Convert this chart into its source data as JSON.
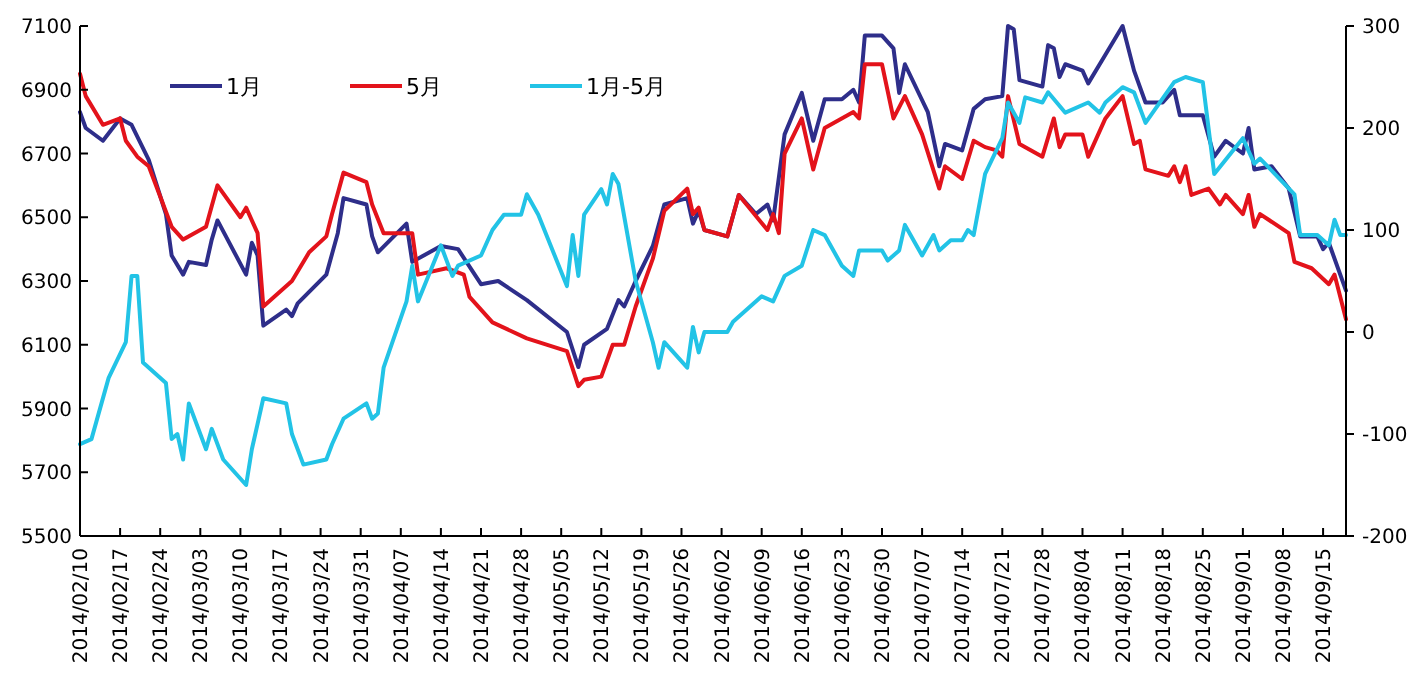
{
  "chart_data": {
    "type": "line",
    "legend": "top left",
    "grid": false,
    "marker": "none",
    "line_style": "solid",
    "xlim": [
      "2014-02-10",
      "2014-09-19"
    ],
    "xticks": [
      {
        "value": "2014-02-10",
        "label": "2014/02/10"
      },
      {
        "value": "2014-02-17",
        "label": "2014/02/17"
      },
      {
        "value": "2014-02-24",
        "label": "2014/02/24"
      },
      {
        "value": "2014-03-03",
        "label": "2014/03/03"
      },
      {
        "value": "2014-03-10",
        "label": "2014/03/10"
      },
      {
        "value": "2014-03-17",
        "label": "2014/03/17"
      },
      {
        "value": "2014-03-24",
        "label": "2014/03/24"
      },
      {
        "value": "2014-03-31",
        "label": "2014/03/31"
      },
      {
        "value": "2014-04-07",
        "label": "2014/04/07"
      },
      {
        "value": "2014-04-14",
        "label": "2014/04/14"
      },
      {
        "value": "2014-04-21",
        "label": "2014/04/21"
      },
      {
        "value": "2014-04-28",
        "label": "2014/04/28"
      },
      {
        "value": "2014-05-05",
        "label": "2014/05/05"
      },
      {
        "value": "2014-05-12",
        "label": "2014/05/12"
      },
      {
        "value": "2014-05-19",
        "label": "2014/05/19"
      },
      {
        "value": "2014-05-26",
        "label": "2014/05/26"
      },
      {
        "value": "2014-06-02",
        "label": "2014/06/02"
      },
      {
        "value": "2014-06-09",
        "label": "2014/06/09"
      },
      {
        "value": "2014-06-16",
        "label": "2014/06/16"
      },
      {
        "value": "2014-06-23",
        "label": "2014/06/23"
      },
      {
        "value": "2014-06-30",
        "label": "2014/06/30"
      },
      {
        "value": "2014-07-07",
        "label": "2014/07/07"
      },
      {
        "value": "2014-07-14",
        "label": "2014/07/14"
      },
      {
        "value": "2014-07-21",
        "label": "2014/07/21"
      },
      {
        "value": "2014-07-28",
        "label": "2014/07/28"
      },
      {
        "value": "2014-08-04",
        "label": "2014/08/04"
      },
      {
        "value": "2014-08-11",
        "label": "2014/08/11"
      },
      {
        "value": "2014-08-18",
        "label": "2014/08/18"
      },
      {
        "value": "2014-08-25",
        "label": "2014/08/25"
      },
      {
        "value": "2014-09-01",
        "label": "2014/09/01"
      },
      {
        "value": "2014-09-08",
        "label": "2014/09/08"
      },
      {
        "value": "2014-09-15",
        "label": "2014/09/15"
      }
    ],
    "ylim": [
      5500,
      7100
    ],
    "yticks": [
      5500,
      5700,
      5900,
      6100,
      6300,
      6500,
      6700,
      6900,
      7100
    ],
    "y2lim": [
      -200,
      300
    ],
    "y2ticks": [
      -200,
      -100,
      0,
      100,
      200,
      300
    ],
    "series": [
      {
        "name": "1月",
        "color": "#2e2e8a",
        "x": [
          "2014-02-10",
          "2014-02-11",
          "2014-02-14",
          "2014-02-17",
          "2014-02-19",
          "2014-02-22",
          "2014-02-25",
          "2014-02-26",
          "2014-02-28",
          "2014-03-01",
          "2014-03-04",
          "2014-03-05",
          "2014-03-06",
          "2014-03-11",
          "2014-03-12",
          "2014-03-13",
          "2014-03-14",
          "2014-03-18",
          "2014-03-19",
          "2014-03-20",
          "2014-03-25",
          "2014-03-27",
          "2014-03-28",
          "2014-04-01",
          "2014-04-02",
          "2014-04-03",
          "2014-04-08",
          "2014-04-09",
          "2014-04-11",
          "2014-04-14",
          "2014-04-17",
          "2014-04-21",
          "2014-04-24",
          "2014-04-29",
          "2014-05-06",
          "2014-05-08",
          "2014-05-09",
          "2014-05-13",
          "2014-05-15",
          "2014-05-16",
          "2014-05-18",
          "2014-05-21",
          "2014-05-23",
          "2014-05-27",
          "2014-05-28",
          "2014-05-29",
          "2014-05-30",
          "2014-06-03",
          "2014-06-05",
          "2014-06-08",
          "2014-06-10",
          "2014-06-11",
          "2014-06-13",
          "2014-06-16",
          "2014-06-18",
          "2014-06-20",
          "2014-06-23",
          "2014-06-25",
          "2014-06-26",
          "2014-06-27",
          "2014-06-30",
          "2014-07-02",
          "2014-07-03",
          "2014-07-04",
          "2014-07-08",
          "2014-07-10",
          "2014-07-11",
          "2014-07-14",
          "2014-07-16",
          "2014-07-18",
          "2014-07-21",
          "2014-07-22",
          "2014-07-23",
          "2014-07-24",
          "2014-07-28",
          "2014-07-29",
          "2014-07-30",
          "2014-07-31",
          "2014-08-01",
          "2014-08-04",
          "2014-08-05",
          "2014-08-08",
          "2014-08-11",
          "2014-08-13",
          "2014-08-15",
          "2014-08-18",
          "2014-08-20",
          "2014-08-21",
          "2014-08-25",
          "2014-08-27",
          "2014-08-29",
          "2014-09-01",
          "2014-09-02",
          "2014-09-03",
          "2014-09-06",
          "2014-09-09",
          "2014-09-11",
          "2014-09-14",
          "2014-09-15",
          "2014-09-16",
          "2014-09-19"
        ],
        "values": [
          6830,
          6780,
          6740,
          6810,
          6790,
          6680,
          6510,
          6380,
          6320,
          6360,
          6350,
          6430,
          6490,
          6320,
          6420,
          6380,
          6160,
          6210,
          6190,
          6230,
          6320,
          6450,
          6560,
          6540,
          6440,
          6390,
          6480,
          6360,
          6380,
          6410,
          6400,
          6290,
          6300,
          6240,
          6140,
          6030,
          6100,
          6150,
          6240,
          6220,
          6300,
          6410,
          6540,
          6560,
          6480,
          6520,
          6460,
          6440,
          6570,
          6510,
          6540,
          6490,
          6760,
          6890,
          6740,
          6870,
          6870,
          6900,
          6860,
          7070,
          7070,
          7030,
          6890,
          6980,
          6830,
          6660,
          6730,
          6710,
          6840,
          6870,
          6880,
          7100,
          7090,
          6930,
          6910,
          7040,
          7030,
          6940,
          6980,
          6960,
          6920,
          7010,
          7100,
          6960,
          6860,
          6860,
          6900,
          6820,
          6820,
          6690,
          6740,
          6700,
          6780,
          6650,
          6660,
          6590,
          6440,
          6440,
          6400,
          6420,
          6270
        ]
      },
      {
        "name": "5月",
        "color": "#e3131b",
        "x": [
          "2014-02-10",
          "2014-02-11",
          "2014-02-14",
          "2014-02-17",
          "2014-02-18",
          "2014-02-20",
          "2014-02-22",
          "2014-02-26",
          "2014-02-28",
          "2014-03-04",
          "2014-03-06",
          "2014-03-10",
          "2014-03-11",
          "2014-03-13",
          "2014-03-14",
          "2014-03-19",
          "2014-03-22",
          "2014-03-25",
          "2014-03-26",
          "2014-03-28",
          "2014-04-01",
          "2014-04-02",
          "2014-04-04",
          "2014-04-09",
          "2014-04-10",
          "2014-04-15",
          "2014-04-18",
          "2014-04-19",
          "2014-04-23",
          "2014-04-29",
          "2014-05-06",
          "2014-05-08",
          "2014-05-09",
          "2014-05-12",
          "2014-05-14",
          "2014-05-16",
          "2014-05-18",
          "2014-05-21",
          "2014-05-23",
          "2014-05-27",
          "2014-05-28",
          "2014-05-29",
          "2014-05-30",
          "2014-06-03",
          "2014-06-05",
          "2014-06-10",
          "2014-06-11",
          "2014-06-12",
          "2014-06-13",
          "2014-06-16",
          "2014-06-18",
          "2014-06-20",
          "2014-06-25",
          "2014-06-26",
          "2014-06-27",
          "2014-06-30",
          "2014-07-02",
          "2014-07-04",
          "2014-07-07",
          "2014-07-10",
          "2014-07-11",
          "2014-07-14",
          "2014-07-16",
          "2014-07-18",
          "2014-07-20",
          "2014-07-21",
          "2014-07-22",
          "2014-07-24",
          "2014-07-28",
          "2014-07-30",
          "2014-07-31",
          "2014-08-01",
          "2014-08-04",
          "2014-08-05",
          "2014-08-08",
          "2014-08-11",
          "2014-08-13",
          "2014-08-14",
          "2014-08-15",
          "2014-08-19",
          "2014-08-20",
          "2014-08-21",
          "2014-08-22",
          "2014-08-23",
          "2014-08-26",
          "2014-08-28",
          "2014-08-29",
          "2014-09-01",
          "2014-09-02",
          "2014-09-03",
          "2014-09-04",
          "2014-09-09",
          "2014-09-10",
          "2014-09-13",
          "2014-09-16",
          "2014-09-17",
          "2014-09-19"
        ],
        "values": [
          6950,
          6880,
          6790,
          6810,
          6740,
          6690,
          6660,
          6470,
          6430,
          6470,
          6600,
          6500,
          6530,
          6450,
          6220,
          6300,
          6390,
          6440,
          6510,
          6640,
          6610,
          6540,
          6450,
          6450,
          6320,
          6340,
          6320,
          6250,
          6170,
          6120,
          6080,
          5970,
          5990,
          6000,
          6100,
          6100,
          6220,
          6370,
          6520,
          6590,
          6510,
          6530,
          6460,
          6440,
          6570,
          6460,
          6510,
          6450,
          6700,
          6810,
          6650,
          6780,
          6830,
          6810,
          6980,
          6980,
          6810,
          6880,
          6760,
          6590,
          6660,
          6620,
          6740,
          6720,
          6710,
          6690,
          6880,
          6730,
          6690,
          6810,
          6720,
          6760,
          6760,
          6690,
          6810,
          6880,
          6730,
          6740,
          6650,
          6630,
          6660,
          6610,
          6660,
          6570,
          6590,
          6540,
          6570,
          6510,
          6570,
          6470,
          6510,
          6450,
          6360,
          6340,
          6290,
          6320,
          6180
        ]
      },
      {
        "name": "1月-5月",
        "color": "#22c3e6",
        "axis": "y2",
        "x": [
          "2014-02-10",
          "2014-02-12",
          "2014-02-15",
          "2014-02-18",
          "2014-02-19",
          "2014-02-20",
          "2014-02-21",
          "2014-02-25",
          "2014-02-26",
          "2014-02-27",
          "2014-02-28",
          "2014-03-01",
          "2014-03-04",
          "2014-03-05",
          "2014-03-07",
          "2014-03-11",
          "2014-03-12",
          "2014-03-14",
          "2014-03-18",
          "2014-03-19",
          "2014-03-21",
          "2014-03-25",
          "2014-03-26",
          "2014-03-28",
          "2014-04-01",
          "2014-04-02",
          "2014-04-03",
          "2014-04-04",
          "2014-04-08",
          "2014-04-09",
          "2014-04-10",
          "2014-04-14",
          "2014-04-16",
          "2014-04-17",
          "2014-04-21",
          "2014-04-23",
          "2014-04-25",
          "2014-04-28",
          "2014-04-29",
          "2014-05-01",
          "2014-05-06",
          "2014-05-07",
          "2014-05-08",
          "2014-05-09",
          "2014-05-12",
          "2014-05-13",
          "2014-05-14",
          "2014-05-15",
          "2014-05-18",
          "2014-05-21",
          "2014-05-22",
          "2014-05-23",
          "2014-05-27",
          "2014-05-28",
          "2014-05-29",
          "2014-05-30",
          "2014-06-03",
          "2014-06-04",
          "2014-06-09",
          "2014-06-11",
          "2014-06-13",
          "2014-06-16",
          "2014-06-18",
          "2014-06-20",
          "2014-06-23",
          "2014-06-25",
          "2014-06-26",
          "2014-06-30",
          "2014-07-01",
          "2014-07-03",
          "2014-07-04",
          "2014-07-07",
          "2014-07-09",
          "2014-07-10",
          "2014-07-12",
          "2014-07-14",
          "2014-07-15",
          "2014-07-16",
          "2014-07-18",
          "2014-07-21",
          "2014-07-22",
          "2014-07-24",
          "2014-07-25",
          "2014-07-28",
          "2014-07-29",
          "2014-08-01",
          "2014-08-05",
          "2014-08-07",
          "2014-08-08",
          "2014-08-11",
          "2014-08-13",
          "2014-08-15",
          "2014-08-20",
          "2014-08-22",
          "2014-08-25",
          "2014-08-27",
          "2014-09-01",
          "2014-09-03",
          "2014-09-04",
          "2014-09-10",
          "2014-09-11",
          "2014-09-14",
          "2014-09-16",
          "2014-09-17",
          "2014-09-18",
          "2014-09-19"
        ],
        "values": [
          -110,
          -105,
          -45,
          -10,
          55,
          55,
          -30,
          -50,
          -105,
          -100,
          -125,
          -70,
          -115,
          -95,
          -125,
          -150,
          -115,
          -65,
          -70,
          -100,
          -130,
          -125,
          -110,
          -85,
          -70,
          -85,
          -80,
          -35,
          30,
          65,
          30,
          85,
          55,
          65,
          75,
          100,
          115,
          115,
          135,
          115,
          45,
          95,
          55,
          115,
          140,
          125,
          155,
          145,
          50,
          -10,
          -35,
          -10,
          -35,
          5,
          -20,
          0,
          0,
          10,
          35,
          30,
          55,
          65,
          100,
          95,
          65,
          55,
          80,
          80,
          70,
          80,
          105,
          75,
          95,
          80,
          90,
          90,
          100,
          95,
          155,
          190,
          225,
          205,
          230,
          225,
          235,
          215,
          225,
          215,
          225,
          240,
          235,
          205,
          245,
          250,
          245,
          155,
          190,
          165,
          170,
          135,
          95,
          95,
          85,
          110,
          95,
          95
        ]
      }
    ]
  }
}
